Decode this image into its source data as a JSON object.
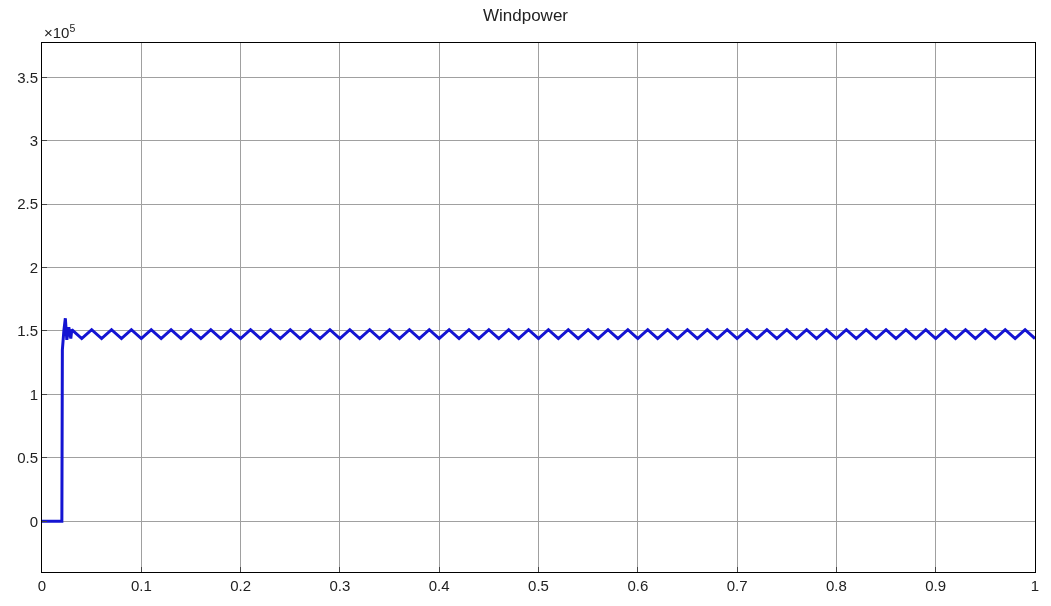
{
  "chart_data": {
    "type": "line",
    "title": "Windpower",
    "annotations": [
      "×10$^{5}$"
    ],
    "x": [
      0,
      0.02,
      0.0205,
      0.022,
      0.0235,
      0.025,
      0.027,
      0.029,
      0.03,
      0.04,
      0.05,
      0.06,
      0.07,
      0.08,
      0.09,
      0.1,
      0.11,
      0.12,
      0.13,
      0.14,
      0.15,
      0.16,
      0.17,
      0.18,
      0.19,
      0.2,
      0.21,
      0.22,
      0.23,
      0.24,
      0.25,
      0.26,
      0.27,
      0.28,
      0.29,
      0.3,
      0.31,
      0.32,
      0.33,
      0.34,
      0.35,
      0.36,
      0.37,
      0.38,
      0.39,
      0.4,
      0.41,
      0.42,
      0.43,
      0.44,
      0.45,
      0.46,
      0.47,
      0.48,
      0.49,
      0.5,
      0.51,
      0.52,
      0.53,
      0.54,
      0.55,
      0.56,
      0.57,
      0.58,
      0.59,
      0.6,
      0.61,
      0.62,
      0.63,
      0.64,
      0.65,
      0.66,
      0.67,
      0.68,
      0.69,
      0.7,
      0.71,
      0.72,
      0.73,
      0.74,
      0.75,
      0.76,
      0.77,
      0.78,
      0.79,
      0.8,
      0.81,
      0.82,
      0.83,
      0.84,
      0.85,
      0.86,
      0.87,
      0.88,
      0.89,
      0.9,
      0.91,
      0.92,
      0.93,
      0.94,
      0.95,
      0.96,
      0.97,
      0.98,
      0.99,
      1.0
    ],
    "series": [
      {
        "color": "#1414d2",
        "values": [
          0,
          0,
          1.35,
          1.5,
          1.6,
          1.43,
          1.53,
          1.44,
          1.51,
          1.44,
          1.51,
          1.44,
          1.51,
          1.44,
          1.51,
          1.44,
          1.51,
          1.44,
          1.51,
          1.44,
          1.51,
          1.44,
          1.51,
          1.44,
          1.51,
          1.44,
          1.51,
          1.44,
          1.51,
          1.44,
          1.51,
          1.44,
          1.51,
          1.44,
          1.51,
          1.44,
          1.51,
          1.44,
          1.51,
          1.44,
          1.51,
          1.44,
          1.51,
          1.44,
          1.51,
          1.44,
          1.51,
          1.44,
          1.51,
          1.44,
          1.51,
          1.44,
          1.51,
          1.44,
          1.51,
          1.44,
          1.51,
          1.44,
          1.51,
          1.44,
          1.51,
          1.44,
          1.51,
          1.44,
          1.51,
          1.44,
          1.51,
          1.44,
          1.51,
          1.44,
          1.51,
          1.44,
          1.51,
          1.44,
          1.51,
          1.44,
          1.51,
          1.44,
          1.51,
          1.44,
          1.51,
          1.44,
          1.51,
          1.44,
          1.51,
          1.44,
          1.51,
          1.44,
          1.51,
          1.44,
          1.51,
          1.44,
          1.51,
          1.44,
          1.51,
          1.44,
          1.51,
          1.44,
          1.51,
          1.44,
          1.51,
          1.44,
          1.51,
          1.44,
          1.51,
          1.44
        ]
      }
    ],
    "xlim": [
      0,
      1
    ],
    "xticks": [
      0,
      0.1,
      0.2,
      0.3,
      0.4,
      0.5,
      0.6,
      0.7,
      0.8,
      0.9,
      1
    ],
    "ylim": [
      -0.4,
      3.77
    ],
    "yticks": [
      0,
      0.5,
      1,
      1.5,
      2,
      2.5,
      3,
      3.5
    ],
    "grid": true,
    "marker": "none",
    "line_style": "solid"
  }
}
